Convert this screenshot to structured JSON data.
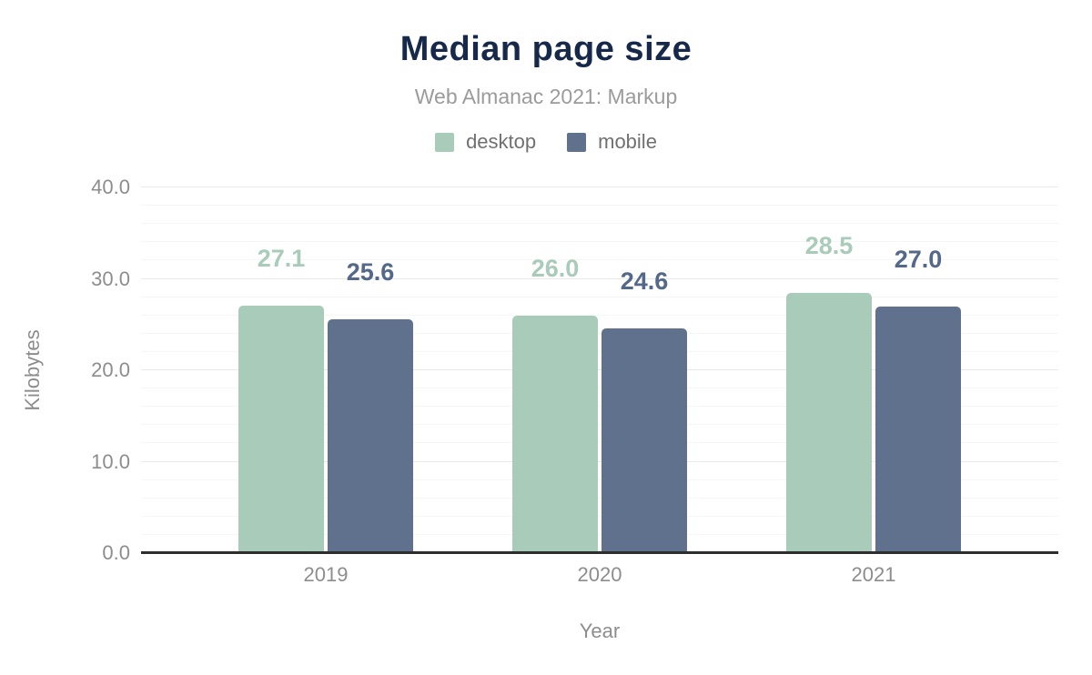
{
  "header": {
    "title": "Median page size",
    "subtitle": "Web Almanac 2021: Markup"
  },
  "legend": {
    "items": [
      {
        "label": "desktop",
        "color": "#a9cbba"
      },
      {
        "label": "mobile",
        "color": "#5f718c"
      }
    ]
  },
  "chart_data": {
    "type": "bar",
    "title": "Median page size",
    "subtitle": "Web Almanac 2021: Markup",
    "categories": [
      "2019",
      "2020",
      "2021"
    ],
    "series": [
      {
        "name": "desktop",
        "color": "#a9cbba",
        "label_color": "#a9cbba",
        "values": [
          27.1,
          26.0,
          28.5
        ],
        "value_labels": [
          "27.1",
          "26.0",
          "28.5"
        ]
      },
      {
        "name": "mobile",
        "color": "#5f718c",
        "label_color": "#54688a",
        "values": [
          25.6,
          24.6,
          27.0
        ],
        "value_labels": [
          "25.6",
          "24.6",
          "27.0"
        ]
      }
    ],
    "xlabel": "Year",
    "ylabel": "Kilobytes",
    "ylim": [
      0,
      40
    ],
    "yticks": [
      {
        "value": 0,
        "label": "0.0"
      },
      {
        "value": 10,
        "label": "10.0"
      },
      {
        "value": 20,
        "label": "20.0"
      },
      {
        "value": 30,
        "label": "30.0"
      },
      {
        "value": 40,
        "label": "40.0"
      }
    ],
    "minor_grid_step": 2,
    "major_grid_step": 10,
    "grid": true,
    "legend_position": "top"
  },
  "colors": {
    "title": "#16294a",
    "subtitle": "#9b9b9b",
    "axis_text": "#8d8d8d",
    "legend_text": "#707070",
    "axis_line": "#2e2e2e",
    "major_grid": "#e9e9e9",
    "minor_grid": "#f6f6f6",
    "background": "#ffffff"
  }
}
